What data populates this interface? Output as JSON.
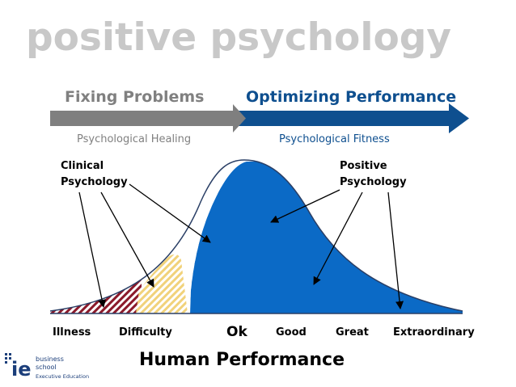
{
  "slide": {
    "title": "positive psychology"
  },
  "arrows": {
    "left_label": "Fixing Problems",
    "left_sub": "Psychological Healing",
    "right_label": "Optimizing Performance",
    "right_sub": "Psychological Fitness"
  },
  "callouts": {
    "clinical_line1": "Clinical",
    "clinical_line2": "Psychology",
    "positive_line1": "Positive",
    "positive_line2": "Psychology"
  },
  "axis": {
    "labels": [
      "Illness",
      "Difficulty",
      "Ok",
      "Good",
      "Great",
      "Extraordinary"
    ],
    "title": "Human Performance"
  },
  "logo": {
    "mark": "ie",
    "line1": "business",
    "line2": "school",
    "line3": "Executive Education"
  },
  "colors": {
    "title_gray": "#c8c8c8",
    "arrow_gray": "#7f7f7f",
    "arrow_blue": "#0e4f8f",
    "curve_blue": "#0b6ac6",
    "hatch_red": "#8b1a2b",
    "hatch_yellow": "#f1d27a",
    "hatch_slate": "#5a7590"
  }
}
